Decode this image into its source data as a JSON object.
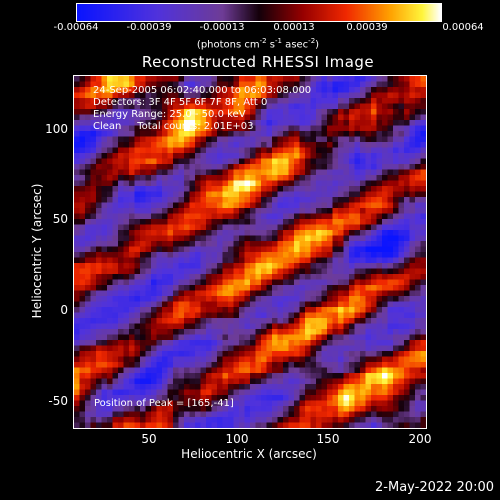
{
  "colorbar": {
    "ticks": [
      "-0.00064",
      "-0.00039",
      "-0.00013",
      "0.00013",
      "0.00039",
      "0.00064"
    ],
    "unit_prefix": "(photons cm",
    "unit_exp1": "-2",
    "unit_mid": " s",
    "unit_exp2": "-1",
    "unit_mid2": " asec",
    "unit_exp3": "-2",
    "unit_suffix": ")"
  },
  "title": "Reconstructed RHESSI Image",
  "overlay": {
    "line1": "24-Sep-2005 06:02:40.000 to 06:03:08.000",
    "line2": "Detectors: 3F 4F 5F 6F 7F 8F, Att 0",
    "line3": "Energy Range: 25.0 - 50.0 keV",
    "line4": "Clean     Total counts: 2.01E+03",
    "peak": "Position of Peak = [165,-41]"
  },
  "axes": {
    "xlabel": "Heliocentric X (arcsec)",
    "ylabel": "Heliocentric Y (arcsec)",
    "xticks": [
      "50",
      "100",
      "150",
      "200"
    ],
    "yticks": [
      "100",
      "50",
      "0",
      "-50"
    ]
  },
  "footer": {
    "date": "2-May-2022 20:00"
  }
}
